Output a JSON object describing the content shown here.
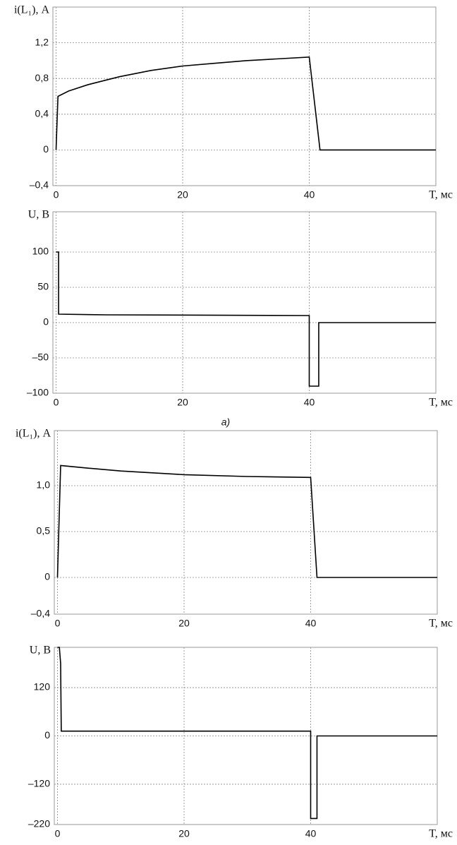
{
  "caption": "а)",
  "chart_data": [
    {
      "type": "line",
      "ylabel": "i(L₁), А",
      "xlabel": "T, мс",
      "x": [
        0,
        0.3,
        2,
        5,
        10,
        15,
        20,
        25,
        30,
        35,
        40,
        41.7,
        60
      ],
      "values": [
        0,
        0.6,
        0.66,
        0.73,
        0.82,
        0.89,
        0.94,
        0.97,
        1.0,
        1.02,
        1.04,
        0,
        0
      ],
      "color": "#000000",
      "xlim": [
        -0.5,
        60
      ],
      "ylim": [
        -0.4,
        1.6
      ],
      "xticks": [
        0,
        20,
        40
      ],
      "yticks": [
        {
          "value": -0.4,
          "label": "–0,4"
        },
        0,
        {
          "value": 0.4,
          "label": "0,4"
        },
        {
          "value": 0.8,
          "label": "0,8"
        },
        {
          "value": 1.2,
          "label": "1,2"
        }
      ],
      "grid": true
    },
    {
      "type": "line",
      "ylabel": "U, В",
      "xlabel": "T, мс",
      "x": [
        0,
        0.4,
        0.4,
        8,
        40,
        40,
        41.5,
        41.5,
        60
      ],
      "values": [
        100,
        100,
        12,
        11,
        10,
        -90,
        -90,
        0,
        0
      ],
      "color": "#000000",
      "xlim": [
        -0.5,
        60
      ],
      "ylim": [
        -100,
        157
      ],
      "xticks": [
        0,
        20,
        40
      ],
      "yticks": [
        {
          "value": -100,
          "label": "–100"
        },
        {
          "value": -50,
          "label": "–50"
        },
        0,
        50,
        100
      ],
      "grid": true
    },
    {
      "type": "line",
      "ylabel": "i(L₁), А",
      "xlabel": "T, мс",
      "x": [
        0,
        0.5,
        5,
        10,
        20,
        30,
        40,
        41,
        60
      ],
      "values": [
        0,
        1.22,
        1.19,
        1.16,
        1.12,
        1.1,
        1.09,
        0,
        0
      ],
      "color": "#000000",
      "xlim": [
        -0.5,
        60
      ],
      "ylim": [
        -0.4,
        1.6
      ],
      "xticks": [
        0,
        20,
        40
      ],
      "yticks": [
        {
          "value": -0.4,
          "label": "–0,4"
        },
        0,
        {
          "value": 0.5,
          "label": "0,5"
        },
        {
          "value": 1.0,
          "label": "1,0"
        }
      ],
      "grid": true
    },
    {
      "type": "line",
      "ylabel": "U, В",
      "xlabel": "T, мс",
      "x": [
        0,
        0.3,
        0.5,
        0.6,
        40,
        40,
        41,
        41,
        60
      ],
      "values": [
        220,
        220,
        180,
        12,
        12,
        -205,
        -205,
        0,
        0
      ],
      "color": "#000000",
      "xlim": [
        -0.5,
        60
      ],
      "ylim": [
        -220,
        220
      ],
      "xticks": [
        0,
        20,
        40
      ],
      "yticks": [
        {
          "value": -220,
          "label": "–220"
        },
        {
          "value": -120,
          "label": "–120"
        },
        0,
        120
      ],
      "grid": true
    }
  ]
}
